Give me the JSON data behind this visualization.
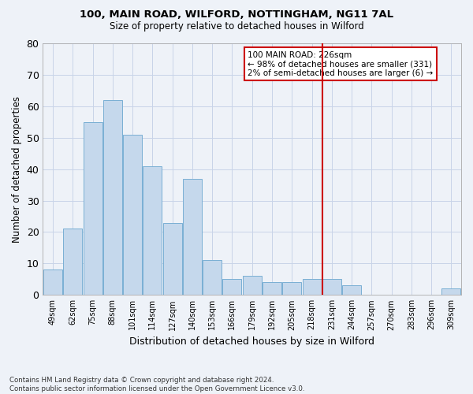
{
  "title1": "100, MAIN ROAD, WILFORD, NOTTINGHAM, NG11 7AL",
  "title2": "Size of property relative to detached houses in Wilford",
  "xlabel": "Distribution of detached houses by size in Wilford",
  "ylabel": "Number of detached properties",
  "footer1": "Contains HM Land Registry data © Crown copyright and database right 2024.",
  "footer2": "Contains public sector information licensed under the Open Government Licence v3.0.",
  "categories": [
    "49sqm",
    "62sqm",
    "75sqm",
    "88sqm",
    "101sqm",
    "114sqm",
    "127sqm",
    "140sqm",
    "153sqm",
    "166sqm",
    "179sqm",
    "192sqm",
    "205sqm",
    "218sqm",
    "231sqm",
    "244sqm",
    "257sqm",
    "270sqm",
    "283sqm",
    "296sqm",
    "309sqm"
  ],
  "values": [
    8,
    21,
    55,
    62,
    51,
    41,
    23,
    37,
    11,
    5,
    6,
    4,
    4,
    5,
    5,
    3,
    0,
    0,
    0,
    0,
    2
  ],
  "bar_color": "#c5d8ec",
  "bar_edge_color": "#7aafd4",
  "grid_color": "#c8d4e8",
  "bg_color": "#eef2f8",
  "annotation_text": "100 MAIN ROAD: 226sqm\n← 98% of detached houses are smaller (331)\n2% of semi-detached houses are larger (6) →",
  "vline_x_index": 13.55,
  "vline_color": "#cc0000",
  "annotation_box_edge": "#cc0000",
  "ylim": [
    0,
    80
  ],
  "yticks": [
    0,
    10,
    20,
    30,
    40,
    50,
    60,
    70,
    80
  ]
}
